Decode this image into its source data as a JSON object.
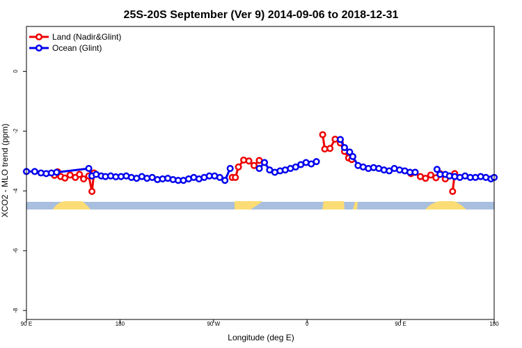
{
  "chart_data": {
    "type": "line",
    "title": "25S-20S September (Ver 9)   2014-09-06 to 2018-12-31",
    "xlabel": "Longitude (deg E)",
    "ylabel": "XCO2 - MLO trend (ppm)",
    "xlim": [
      90,
      540
    ],
    "ylim": [
      -8.3,
      1.5
    ],
    "grid": false,
    "legend_position": "top-left",
    "x_ticks": [
      {
        "value": 90,
        "label": "90 E"
      },
      {
        "value": 180,
        "label": "180"
      },
      {
        "value": 270,
        "label": "90 W"
      },
      {
        "value": 360,
        "label": "0"
      },
      {
        "value": 450,
        "label": "90 E"
      },
      {
        "value": 540,
        "label": "180"
      }
    ],
    "y_ticks": [
      {
        "value": 0,
        "label": "0"
      },
      {
        "value": -2,
        "label": "-2"
      },
      {
        "value": -4,
        "label": "-4"
      },
      {
        "value": -6,
        "label": "-6"
      },
      {
        "value": -8,
        "label": "-8"
      }
    ],
    "colors": {
      "land": "#ee0000",
      "ocean": "#0000ee",
      "map_ocean": "#a9bfdf",
      "map_land": "#fcdc74"
    },
    "series": [
      {
        "name": "Land (Nadir&Glint)",
        "color": "#ee0000",
        "segments": [
          [
            [
              117,
              -3.48
            ],
            [
              120,
              -3.36
            ],
            [
              123,
              -3.52
            ],
            [
              127,
              -3.57
            ],
            [
              132,
              -3.47
            ],
            [
              137,
              -3.55
            ],
            [
              141,
              -3.45
            ],
            [
              145,
              -3.6
            ],
            [
              150,
              -3.5
            ],
            [
              153,
              -4.02
            ],
            [
              155,
              -3.4
            ]
          ],
          [
            [
              288,
              -3.55
            ],
            [
              291,
              -3.55
            ],
            [
              294,
              -3.2
            ],
            [
              299,
              -2.97
            ],
            [
              304,
              -3
            ],
            [
              309,
              -3.15
            ],
            [
              314,
              -2.98
            ]
          ],
          [
            [
              375,
              -2.12
            ],
            [
              377,
              -2.6
            ],
            [
              382,
              -2.58
            ],
            [
              387,
              -2.27
            ],
            [
              392,
              -2.4
            ],
            [
              396,
              -2.68
            ],
            [
              400,
              -2.9
            ],
            [
              403,
              -2.95
            ]
          ],
          [
            [
              460,
              -3.42
            ],
            [
              464,
              -3.38
            ],
            [
              469,
              -3.52
            ],
            [
              474,
              -3.58
            ],
            [
              479,
              -3.47
            ],
            [
              484,
              -3.56
            ],
            [
              488,
              -3.42
            ],
            [
              493,
              -3.6
            ]
          ],
          [
            [
              500,
              -4.02
            ],
            [
              502,
              -3.42
            ]
          ]
        ]
      },
      {
        "name": "Ocean (Glint)",
        "color": "#0000ee",
        "segments": [
          [
            [
              90,
              -3.35
            ],
            [
              98,
              -3.35
            ],
            [
              104,
              -3.4
            ],
            [
              109,
              -3.42
            ],
            [
              114,
              -3.4
            ],
            [
              119,
              -3.38
            ],
            [
              150,
              -3.25
            ],
            [
              153,
              -3.5
            ],
            [
              157,
              -3.45
            ],
            [
              162,
              -3.5
            ],
            [
              166,
              -3.52
            ],
            [
              171,
              -3.5
            ],
            [
              176,
              -3.53
            ],
            [
              181,
              -3.52
            ],
            [
              186,
              -3.5
            ],
            [
              191,
              -3.55
            ],
            [
              196,
              -3.58
            ],
            [
              201,
              -3.52
            ],
            [
              206,
              -3.58
            ],
            [
              211,
              -3.55
            ],
            [
              216,
              -3.62
            ],
            [
              221,
              -3.6
            ],
            [
              226,
              -3.58
            ],
            [
              231,
              -3.62
            ],
            [
              236,
              -3.65
            ],
            [
              241,
              -3.65
            ],
            [
              246,
              -3.6
            ],
            [
              251,
              -3.55
            ],
            [
              256,
              -3.6
            ],
            [
              261,
              -3.55
            ],
            [
              266,
              -3.5
            ],
            [
              271,
              -3.5
            ],
            [
              276,
              -3.55
            ],
            [
              281,
              -3.65
            ],
            [
              286,
              -3.25
            ]
          ],
          [
            [
              314,
              -3.25
            ],
            [
              319,
              -3.05
            ],
            [
              324,
              -3.3
            ],
            [
              329,
              -3.38
            ],
            [
              334,
              -3.33
            ],
            [
              339,
              -3.3
            ],
            [
              344,
              -3.25
            ],
            [
              349,
              -3.2
            ],
            [
              354,
              -3.12
            ],
            [
              359,
              -3.05
            ],
            [
              364,
              -3.1
            ],
            [
              369,
              -3.02
            ]
          ],
          [
            [
              392,
              -2.28
            ],
            [
              396,
              -2.55
            ],
            [
              401,
              -2.7
            ],
            [
              404,
              -2.85
            ],
            [
              409,
              -3.15
            ],
            [
              414,
              -3.2
            ],
            [
              419,
              -3.25
            ],
            [
              424,
              -3.22
            ],
            [
              429,
              -3.25
            ],
            [
              434,
              -3.3
            ],
            [
              439,
              -3.33
            ],
            [
              444,
              -3.25
            ],
            [
              449,
              -3.3
            ],
            [
              454,
              -3.33
            ],
            [
              459,
              -3.38
            ],
            [
              464,
              -3.38
            ]
          ],
          [
            [
              485,
              -3.28
            ],
            [
              488,
              -3.45
            ],
            [
              493,
              -3.45
            ],
            [
              497,
              -3.5
            ],
            [
              502,
              -3.52
            ],
            [
              507,
              -3.55
            ],
            [
              512,
              -3.5
            ],
            [
              517,
              -3.55
            ],
            [
              522,
              -3.55
            ],
            [
              527,
              -3.52
            ],
            [
              532,
              -3.55
            ],
            [
              537,
              -3.6
            ],
            [
              540,
              -3.55
            ]
          ]
        ]
      }
    ]
  }
}
